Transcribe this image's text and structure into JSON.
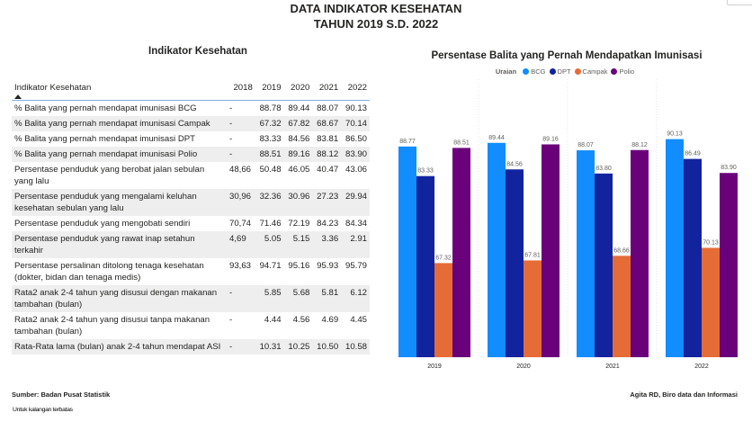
{
  "header": {
    "title_line1": "DATA INDIKATOR KESEHATAN",
    "title_line2": "TAHUN 2019 S.D. 2022"
  },
  "table": {
    "title": "Indikator Kesehatan",
    "columns": [
      "Indikator Kesehatan",
      "2018",
      "2019",
      "2020",
      "2021",
      "2022"
    ],
    "sort_indicator": "ascending",
    "rows": [
      {
        "label": "% Balita yang pernah mendapat imunisasi BCG",
        "values": [
          "-",
          "88.78",
          "89.44",
          "88.07",
          "90.13"
        ]
      },
      {
        "label": "% Balita yang pernah mendapat imunisasi Campak",
        "values": [
          "-",
          "67.32",
          "67.82",
          "68.67",
          "70.14"
        ]
      },
      {
        "label": "% Balita yang pernah mendapat imunisasi DPT",
        "values": [
          "-",
          "83.33",
          "84.56",
          "83.81",
          "86.50"
        ]
      },
      {
        "label": "% Balita yang pernah mendapat imunisasi Polio",
        "values": [
          "-",
          "88.51",
          "89.16",
          "88.12",
          "83.90"
        ]
      },
      {
        "label": "Persentase penduduk yang berobat jalan sebulan yang lalu",
        "values": [
          "48,66",
          "50.48",
          "46.05",
          "40.47",
          "43.06"
        ]
      },
      {
        "label": "Persentase penduduk yang mengalami keluhan kesehatan sebulan yang lalu",
        "values": [
          "30,96",
          "32.36",
          "30.96",
          "27.23",
          "29.94"
        ]
      },
      {
        "label": "Persentase penduduk yang mengobati sendiri",
        "values": [
          "70,74",
          "71.46",
          "72.19",
          "84.23",
          "84.34"
        ]
      },
      {
        "label": "Persentase penduduk yang rawat inap setahun terkahir",
        "values": [
          "4,69",
          "5.05",
          "5.15",
          "3.36",
          "2.91"
        ]
      },
      {
        "label": "Persentase persalinan ditolong tenaga kesehatan (dokter, bidan dan tenaga medis)",
        "values": [
          "93,63",
          "94.71",
          "95.16",
          "95.93",
          "95.79"
        ]
      },
      {
        "label": "Rata2 anak 2-4 tahun yang disusui dengan makanan tambahan (bulan)",
        "values": [
          "-",
          "5.85",
          "5.68",
          "5.81",
          "6.12"
        ]
      },
      {
        "label": "Rata2 anak 2-4 tahun yang disusui tanpa makanan tambahan (bulan)",
        "values": [
          "-",
          "4.44",
          "4.56",
          "4.69",
          "4.45"
        ]
      },
      {
        "label": "Rata-Rata lama (bulan) anak 2-4 tahun mendapat ASI",
        "values": [
          "-",
          "10.31",
          "10.25",
          "10.50",
          "10.58"
        ]
      }
    ]
  },
  "chart_data": {
    "type": "bar",
    "title": "Persentase Balita yang Pernah Mendapatkan Imunisasi",
    "legend_title": "Uraian",
    "legend_position": "top-center",
    "categories": [
      "2019",
      "2020",
      "2021",
      "2022"
    ],
    "series": [
      {
        "name": "BCG",
        "color": "#118dff",
        "values": [
          88.77,
          89.44,
          88.07,
          90.13
        ],
        "labels": [
          "88.77",
          "89.44",
          "88.07",
          "90.13"
        ]
      },
      {
        "name": "DPT",
        "color": "#12239e",
        "values": [
          83.33,
          84.56,
          83.8,
          86.49
        ],
        "labels": [
          "83.33",
          "84.56",
          "83.80",
          "86.49"
        ]
      },
      {
        "name": "Campak",
        "color": "#e66c37",
        "values": [
          67.32,
          67.81,
          68.66,
          70.13
        ],
        "labels": [
          "67.32",
          "67.81",
          "68.66",
          "70.13"
        ]
      },
      {
        "name": "Polio",
        "color": "#6b007b",
        "values": [
          88.51,
          89.16,
          88.12,
          83.9
        ],
        "labels": [
          "88.51",
          "89.16",
          "88.12",
          "83.90"
        ]
      }
    ],
    "xlabel": "",
    "ylabel": "",
    "ylim": [
      50,
      100
    ],
    "y_axis_visible": false,
    "grid": "vertical dotted separators"
  },
  "footer": {
    "source": "Sumber: Badan Pusat Statistik",
    "note": "Untuk kalangan terbatas",
    "author": "Agita RD, Biro data dan Informasi"
  }
}
